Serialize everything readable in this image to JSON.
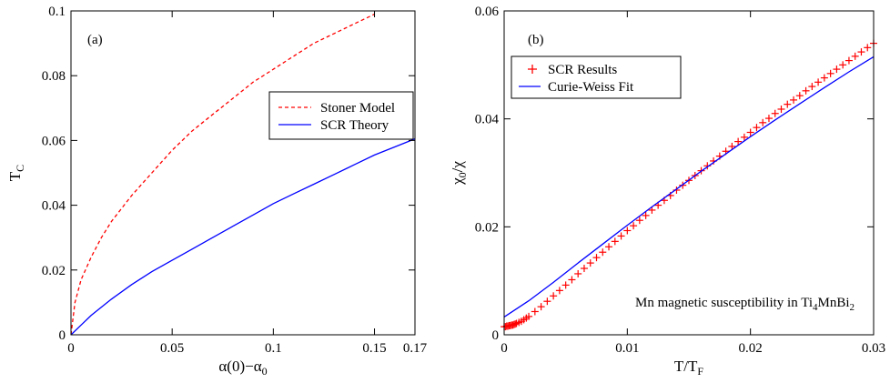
{
  "chart_data": [
    {
      "type": "line",
      "panel_label": "(a)",
      "xlabel": "α(0)−α₀",
      "ylabel": "T_C",
      "xlim": [
        0,
        0.17
      ],
      "ylim": [
        0,
        0.1
      ],
      "xticks": [
        0,
        0.05,
        0.1,
        0.15,
        0.17
      ],
      "xtick_labels": [
        "0",
        "0.05",
        "0.1",
        "0.15",
        "0.17"
      ],
      "yticks": [
        0,
        0.02,
        0.04,
        0.06,
        0.08,
        0.1
      ],
      "ytick_labels": [
        "0",
        "0.02",
        "0.04",
        "0.06",
        "0.08",
        "0.1"
      ],
      "legend_position": "center-right",
      "series": [
        {
          "name": "Stoner Model",
          "color": "#ff0000",
          "style": "dashed",
          "x": [
            0,
            0.002,
            0.005,
            0.01,
            0.015,
            0.02,
            0.03,
            0.04,
            0.05,
            0.06,
            0.07,
            0.08,
            0.09,
            0.1,
            0.11,
            0.12,
            0.13,
            0.14,
            0.15
          ],
          "y": [
            0,
            0.01,
            0.017,
            0.024,
            0.03,
            0.035,
            0.043,
            0.05,
            0.057,
            0.063,
            0.068,
            0.073,
            0.078,
            0.082,
            0.086,
            0.09,
            0.093,
            0.096,
            0.099
          ]
        },
        {
          "name": "SCR Theory",
          "color": "#0000ff",
          "style": "solid",
          "x": [
            0,
            0.005,
            0.01,
            0.02,
            0.03,
            0.04,
            0.05,
            0.06,
            0.07,
            0.08,
            0.09,
            0.1,
            0.11,
            0.12,
            0.13,
            0.14,
            0.15,
            0.16,
            0.17
          ],
          "y": [
            0,
            0.003,
            0.006,
            0.011,
            0.0155,
            0.0195,
            0.023,
            0.0265,
            0.03,
            0.0335,
            0.037,
            0.0405,
            0.0435,
            0.0465,
            0.0495,
            0.0525,
            0.0555,
            0.058,
            0.0605
          ]
        }
      ]
    },
    {
      "type": "line",
      "panel_label": "(b)",
      "xlabel": "T/T_F",
      "ylabel": "χ₀/χ",
      "xlim": [
        0,
        0.03
      ],
      "ylim": [
        0,
        0.06
      ],
      "xticks": [
        0,
        0.01,
        0.02,
        0.03
      ],
      "xtick_labels": [
        "0",
        "0.01",
        "0.02",
        "0.03"
      ],
      "yticks": [
        0,
        0.02,
        0.04,
        0.06
      ],
      "ytick_labels": [
        "0",
        "0.02",
        "0.04",
        "0.06"
      ],
      "legend_position": "top-left",
      "annotation": "Mn magnetic susceptibility in Ti4MnBi2",
      "series": [
        {
          "name": "SCR Results",
          "color": "#ff0000",
          "style": "plus-markers",
          "x": [
            0,
            0.0001,
            0.0002,
            0.0003,
            0.0004,
            0.0005,
            0.0006,
            0.0007,
            0.0008,
            0.0009,
            0.001,
            0.0012,
            0.0014,
            0.0016,
            0.0018,
            0.002,
            0.0025,
            0.003,
            0.0035,
            0.004,
            0.0045,
            0.005,
            0.0055,
            0.006,
            0.0065,
            0.007,
            0.0075,
            0.008,
            0.0085,
            0.009,
            0.0095,
            0.01,
            0.0105,
            0.011,
            0.0115,
            0.012,
            0.0125,
            0.013,
            0.0135,
            0.014,
            0.0145,
            0.015,
            0.0155,
            0.016,
            0.0165,
            0.017,
            0.0175,
            0.018,
            0.0185,
            0.019,
            0.0195,
            0.02,
            0.0205,
            0.021,
            0.0215,
            0.022,
            0.0225,
            0.023,
            0.0235,
            0.024,
            0.0245,
            0.025,
            0.0255,
            0.026,
            0.0265,
            0.027,
            0.0275,
            0.028,
            0.0285,
            0.029,
            0.0295,
            0.03
          ],
          "y": [
            0.0015,
            0.0015,
            0.0016,
            0.0016,
            0.0017,
            0.0017,
            0.0018,
            0.0018,
            0.0019,
            0.002,
            0.0021,
            0.0023,
            0.0025,
            0.0028,
            0.0031,
            0.0034,
            0.0043,
            0.0052,
            0.0062,
            0.0072,
            0.0082,
            0.0092,
            0.0102,
            0.0113,
            0.0123,
            0.0133,
            0.0143,
            0.0153,
            0.0163,
            0.0173,
            0.0183,
            0.0193,
            0.0202,
            0.0212,
            0.0221,
            0.0231,
            0.024,
            0.0249,
            0.0258,
            0.0268,
            0.0277,
            0.0286,
            0.0295,
            0.0304,
            0.0313,
            0.0322,
            0.0331,
            0.034,
            0.0349,
            0.0358,
            0.0366,
            0.0375,
            0.0384,
            0.0393,
            0.0401,
            0.041,
            0.0418,
            0.0427,
            0.0435,
            0.0443,
            0.0452,
            0.046,
            0.0468,
            0.0476,
            0.0484,
            0.0492,
            0.05,
            0.0508,
            0.0516,
            0.0524,
            0.0532,
            0.054
          ]
        },
        {
          "name": "Curie-Weiss Fit",
          "color": "#0000ff",
          "style": "solid",
          "x": [
            0,
            0.002,
            0.004,
            0.006,
            0.008,
            0.01,
            0.012,
            0.014,
            0.016,
            0.018,
            0.02,
            0.022,
            0.024,
            0.026,
            0.028,
            0.03
          ],
          "y": [
            0.0033,
            0.0063,
            0.0097,
            0.0133,
            0.0168,
            0.0203,
            0.0237,
            0.027,
            0.0303,
            0.0335,
            0.0367,
            0.0398,
            0.0428,
            0.0458,
            0.0487,
            0.0515
          ]
        }
      ]
    }
  ]
}
